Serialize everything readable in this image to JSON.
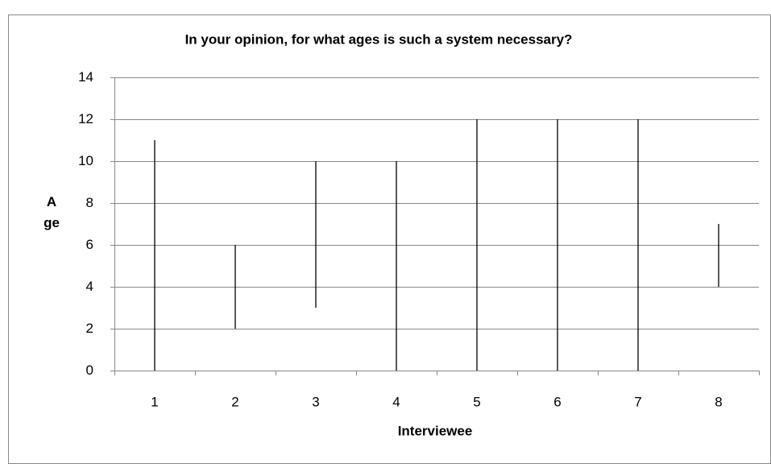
{
  "chart_data": {
    "type": "range",
    "title": "In your opinion, for what ages is such a system necessary?",
    "x_label": "Interviewee",
    "y_label": "Age",
    "categories": [
      "1",
      "2",
      "3",
      "4",
      "5",
      "6",
      "7",
      "8"
    ],
    "low": [
      0,
      2,
      3,
      0,
      0,
      0,
      0,
      4
    ],
    "high": [
      11,
      6,
      10,
      10,
      12,
      12,
      12,
      7
    ],
    "color": "#000000",
    "ylim": [
      0,
      14
    ],
    "yticks": [
      0,
      2,
      4,
      6,
      8,
      10,
      12,
      14
    ],
    "grid": true
  }
}
